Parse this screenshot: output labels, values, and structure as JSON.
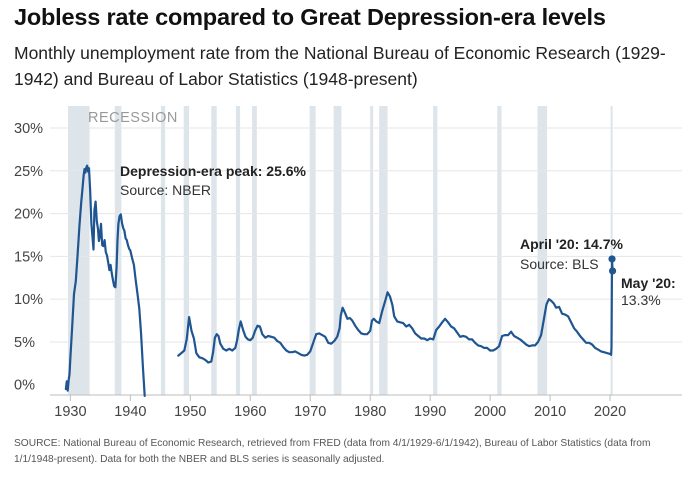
{
  "header": {
    "title": "Jobless rate compared to Great Depression-era levels",
    "subtitle": "Monthly unemployment rate from the National Bureau of Economic Research (1929-1942) and Bureau of Labor Statistics (1948-present)"
  },
  "footer": {
    "source": "SOURCE: National Bureau of Economic Research, retrieved from FRED (data from 4/1/1929-6/1/1942), Bureau of Labor Statistics (data from 1/1/1948-present). Data for both the NBER and BLS series is seasonally adjusted."
  },
  "colors": {
    "line": "#1f5591",
    "recession": "#dde4ea",
    "axis": "#bdbdbd",
    "text": "#222222"
  },
  "chart_data": {
    "type": "line",
    "title": "Jobless rate compared to Great Depression-era levels",
    "recession_label": "RECESSION",
    "x_ticks": [
      1930,
      1940,
      1950,
      1960,
      1970,
      1980,
      1990,
      2000,
      2010,
      2020
    ],
    "y_ticks": [
      0,
      5,
      10,
      15,
      20,
      25,
      30
    ],
    "y_tick_labels": [
      "0%",
      "5%",
      "10%",
      "15%",
      "20%",
      "25%",
      "30%"
    ],
    "xlim": [
      1926.6,
      2032
    ],
    "ylim": [
      -1.2,
      30
    ],
    "recessions": [
      [
        1929.6,
        1933.2
      ],
      [
        1937.4,
        1938.5
      ],
      [
        1945.1,
        1945.8
      ],
      [
        1948.9,
        1949.8
      ],
      [
        1953.5,
        1954.4
      ],
      [
        1957.6,
        1958.3
      ],
      [
        1960.3,
        1961.1
      ],
      [
        1969.9,
        1970.9
      ],
      [
        1973.9,
        1975.2
      ],
      [
        1980.0,
        1980.5
      ],
      [
        1981.5,
        1982.9
      ],
      [
        1990.5,
        1991.2
      ],
      [
        2001.2,
        2001.9
      ],
      [
        2007.9,
        2009.5
      ],
      [
        2020.1,
        2020.4
      ]
    ],
    "series": [
      {
        "segment": "NBER",
        "x": [
          1929.25,
          1929.4,
          1929.55,
          1929.7,
          1929.85,
          1930.0,
          1930.3,
          1930.6,
          1930.9,
          1931.2,
          1931.5,
          1931.8,
          1932.0,
          1932.2,
          1932.35,
          1932.5,
          1932.65,
          1932.8,
          1932.95,
          1933.1,
          1933.3,
          1933.5,
          1933.7,
          1933.85,
          1934.0,
          1934.2,
          1934.4,
          1934.6,
          1934.75,
          1934.9,
          1935.1,
          1935.3,
          1935.5,
          1935.7,
          1935.9,
          1936.1,
          1936.3,
          1936.5,
          1936.7,
          1936.9,
          1937.1,
          1937.3,
          1937.5,
          1937.7,
          1937.85,
          1938.0,
          1938.2,
          1938.4,
          1938.6,
          1938.8,
          1939.0,
          1939.2,
          1939.4,
          1939.6,
          1939.8,
          1940.0,
          1940.3,
          1940.6,
          1940.9,
          1941.2,
          1941.5,
          1941.8,
          1942.1,
          1942.4
        ],
        "y": [
          -0.5,
          0.4,
          -0.7,
          0.5,
          1.2,
          3.2,
          6.8,
          10.6,
          12.1,
          15.2,
          18.5,
          21.3,
          22.8,
          24.4,
          25.2,
          24.8,
          25.4,
          25.6,
          24.9,
          25.3,
          22.6,
          18.8,
          17.1,
          15.8,
          20.4,
          21.4,
          19.1,
          18.2,
          16.8,
          17.3,
          18.8,
          16.3,
          16.2,
          16.9,
          15.5,
          15.1,
          14.3,
          13.4,
          14.0,
          13.0,
          12.2,
          11.5,
          11.4,
          13.8,
          16.9,
          18.8,
          19.7,
          19.9,
          18.9,
          18.3,
          18.0,
          17.1,
          16.9,
          16.3,
          15.9,
          15.7,
          14.8,
          14.0,
          12.2,
          10.6,
          8.9,
          5.9,
          2.1,
          -1.3
        ]
      },
      {
        "segment": "BLS",
        "x": [
          1948.0,
          1948.5,
          1949.0,
          1949.4,
          1949.8,
          1950.2,
          1950.6,
          1951.0,
          1951.5,
          1952.0,
          1952.5,
          1953.0,
          1953.5,
          1953.8,
          1954.1,
          1954.4,
          1954.7,
          1955.0,
          1955.5,
          1956.0,
          1956.5,
          1957.0,
          1957.5,
          1957.8,
          1958.1,
          1958.4,
          1958.8,
          1959.2,
          1959.6,
          1960.0,
          1960.4,
          1960.8,
          1961.2,
          1961.6,
          1962.0,
          1962.5,
          1963.0,
          1963.5,
          1964.0,
          1964.5,
          1965.0,
          1965.5,
          1966.0,
          1966.5,
          1967.0,
          1967.5,
          1968.0,
          1968.5,
          1969.0,
          1969.5,
          1970.0,
          1970.5,
          1971.0,
          1971.5,
          1972.0,
          1972.5,
          1973.0,
          1973.5,
          1974.0,
          1974.5,
          1974.9,
          1975.1,
          1975.4,
          1975.8,
          1976.2,
          1976.6,
          1977.0,
          1977.5,
          1978.0,
          1978.5,
          1979.0,
          1979.5,
          1980.0,
          1980.3,
          1980.6,
          1981.0,
          1981.5,
          1982.0,
          1982.5,
          1982.9,
          1983.3,
          1983.7,
          1984.0,
          1984.5,
          1985.0,
          1985.5,
          1986.0,
          1986.5,
          1987.0,
          1987.5,
          1988.0,
          1988.5,
          1989.0,
          1989.5,
          1990.0,
          1990.5,
          1991.0,
          1991.5,
          1992.0,
          1992.5,
          1993.0,
          1993.5,
          1994.0,
          1994.5,
          1995.0,
          1995.5,
          1996.0,
          1996.5,
          1997.0,
          1997.5,
          1998.0,
          1998.5,
          1999.0,
          1999.5,
          2000.0,
          2000.5,
          2001.0,
          2001.5,
          2002.0,
          2002.5,
          2003.0,
          2003.5,
          2004.0,
          2004.5,
          2005.0,
          2005.5,
          2006.0,
          2006.5,
          2007.0,
          2007.5,
          2008.0,
          2008.5,
          2009.0,
          2009.4,
          2009.8,
          2010.2,
          2010.6,
          2011.0,
          2011.5,
          2012.0,
          2012.5,
          2013.0,
          2013.5,
          2014.0,
          2014.5,
          2015.0,
          2015.5,
          2016.0,
          2016.5,
          2017.0,
          2017.5,
          2018.0,
          2018.5,
          2019.0,
          2019.5,
          2020.0,
          2020.17,
          2020.25,
          2020.33,
          2020.42
        ],
        "y": [
          3.4,
          3.7,
          4.0,
          5.3,
          7.9,
          6.3,
          5.4,
          3.7,
          3.2,
          3.1,
          2.9,
          2.6,
          2.7,
          3.8,
          5.5,
          5.9,
          5.7,
          4.8,
          4.2,
          4.0,
          4.2,
          4.0,
          4.3,
          5.2,
          6.5,
          7.4,
          6.4,
          5.6,
          5.3,
          5.2,
          5.5,
          6.3,
          6.9,
          6.8,
          5.9,
          5.5,
          5.7,
          5.6,
          5.5,
          5.1,
          4.9,
          4.4,
          4.0,
          3.8,
          3.8,
          3.9,
          3.7,
          3.5,
          3.4,
          3.5,
          3.9,
          4.9,
          5.9,
          6.0,
          5.8,
          5.6,
          4.9,
          4.8,
          5.1,
          5.6,
          6.6,
          8.1,
          9.0,
          8.4,
          7.7,
          7.8,
          7.5,
          6.9,
          6.4,
          6.0,
          5.9,
          5.9,
          6.3,
          7.5,
          7.7,
          7.4,
          7.2,
          8.6,
          9.8,
          10.8,
          10.3,
          9.3,
          8.0,
          7.4,
          7.3,
          7.2,
          6.8,
          7.0,
          6.6,
          6.0,
          5.7,
          5.4,
          5.4,
          5.2,
          5.4,
          5.3,
          6.4,
          6.8,
          7.3,
          7.7,
          7.3,
          6.8,
          6.6,
          6.1,
          5.6,
          5.7,
          5.6,
          5.3,
          5.3,
          4.9,
          4.6,
          4.5,
          4.3,
          4.3,
          4.0,
          4.0,
          4.2,
          4.5,
          5.7,
          5.8,
          5.8,
          6.2,
          5.7,
          5.5,
          5.3,
          5.0,
          4.7,
          4.5,
          4.6,
          4.6,
          5.0,
          5.8,
          7.8,
          9.4,
          10.0,
          9.8,
          9.5,
          9.0,
          9.1,
          8.3,
          8.2,
          8.0,
          7.3,
          6.6,
          6.2,
          5.7,
          5.3,
          4.9,
          4.9,
          4.7,
          4.3,
          4.1,
          3.9,
          3.8,
          3.7,
          3.6,
          3.5,
          4.4,
          14.7,
          13.3
        ]
      }
    ],
    "annotations": {
      "peak_title": "Depression-era peak: 25.6%",
      "peak_source": "Source: NBER",
      "april_title": "April '20: 14.7%",
      "april_source": "Source: BLS",
      "may_title": "May '20:",
      "may_value": "13.3%"
    },
    "highlight_points": [
      {
        "x": 2020.33,
        "y": 14.7
      },
      {
        "x": 2020.42,
        "y": 13.3
      }
    ]
  }
}
